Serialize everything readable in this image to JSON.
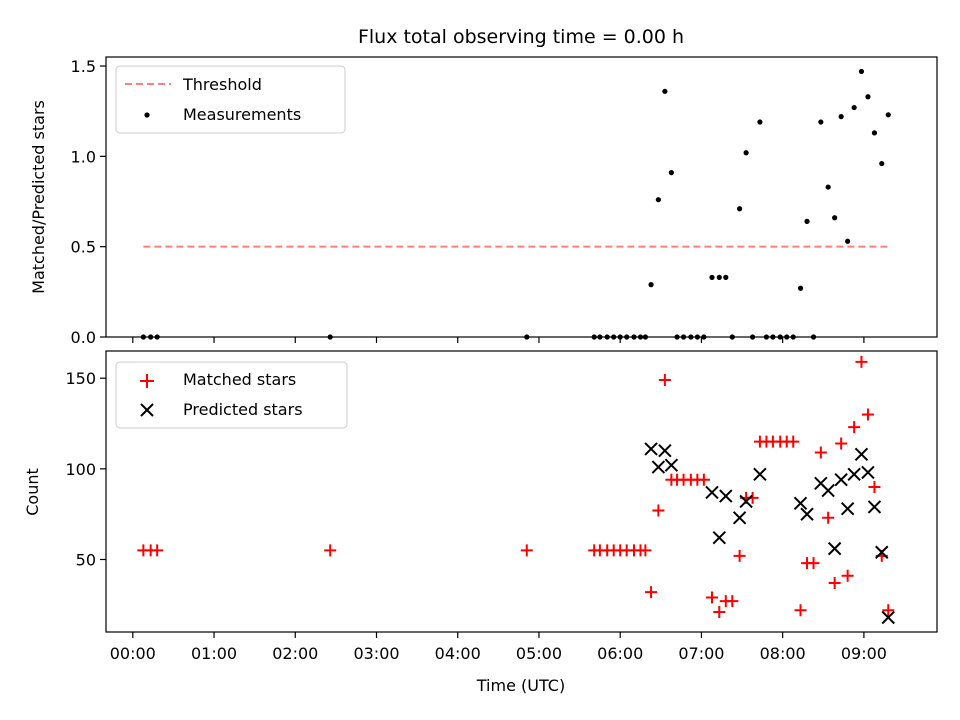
{
  "chart_data": [
    {
      "type": "scatter",
      "title": "Flux total observing time = 0.00 h",
      "xlabel": "",
      "ylabel": "Matched/Predicted stars",
      "xlim": [
        -0.33,
        9.9
      ],
      "ylim": [
        0.0,
        1.55
      ],
      "yticks": [
        0.0,
        0.5,
        1.0,
        1.5
      ],
      "ytick_labels": [
        "0.0",
        "0.5",
        "1.0",
        "1.5"
      ],
      "legend": {
        "position": "top-left",
        "entries": [
          "Threshold",
          "Measurements"
        ]
      },
      "threshold": {
        "name": "Threshold",
        "y": 0.5,
        "x_start": 0.13,
        "x_end": 9.32,
        "color": "#ff7f7f",
        "style": "dashed"
      },
      "series": [
        {
          "name": "Measurements",
          "marker": "dot",
          "color": "#000000",
          "points": [
            [
              0.13,
              0
            ],
            [
              0.22,
              0
            ],
            [
              0.3,
              0
            ],
            [
              2.43,
              0
            ],
            [
              4.85,
              0
            ],
            [
              5.68,
              0
            ],
            [
              5.75,
              0
            ],
            [
              5.84,
              0
            ],
            [
              5.92,
              0
            ],
            [
              6.0,
              0
            ],
            [
              6.08,
              0
            ],
            [
              6.17,
              0
            ],
            [
              6.25,
              0
            ],
            [
              6.31,
              0
            ],
            [
              6.38,
              0.29
            ],
            [
              6.47,
              0.76
            ],
            [
              6.55,
              1.36
            ],
            [
              6.63,
              0.91
            ],
            [
              6.7,
              0
            ],
            [
              6.78,
              0
            ],
            [
              6.87,
              0
            ],
            [
              6.95,
              0
            ],
            [
              7.03,
              0
            ],
            [
              7.13,
              0.33
            ],
            [
              7.22,
              0.33
            ],
            [
              7.3,
              0.33
            ],
            [
              7.38,
              0
            ],
            [
              7.47,
              0.71
            ],
            [
              7.55,
              1.02
            ],
            [
              7.63,
              0
            ],
            [
              7.72,
              1.19
            ],
            [
              7.8,
              0
            ],
            [
              7.88,
              0
            ],
            [
              7.97,
              0
            ],
            [
              8.05,
              0
            ],
            [
              8.13,
              0
            ],
            [
              8.22,
              0.27
            ],
            [
              8.3,
              0.64
            ],
            [
              8.38,
              0
            ],
            [
              8.47,
              1.19
            ],
            [
              8.56,
              0.83
            ],
            [
              8.64,
              0.66
            ],
            [
              8.72,
              1.22
            ],
            [
              8.8,
              0.53
            ],
            [
              8.88,
              1.27
            ],
            [
              8.97,
              1.47
            ],
            [
              9.05,
              1.33
            ],
            [
              9.13,
              1.13
            ],
            [
              9.22,
              0.96
            ],
            [
              9.3,
              1.23
            ]
          ]
        }
      ]
    },
    {
      "type": "scatter",
      "title": "",
      "xlabel": "Time (UTC)",
      "ylabel": "Count",
      "xlim": [
        -0.33,
        9.9
      ],
      "ylim": [
        10,
        165
      ],
      "yticks": [
        50,
        100,
        150
      ],
      "ytick_labels": [
        "50",
        "100",
        "150"
      ],
      "xticks": [
        0,
        1,
        2,
        3,
        4,
        5,
        6,
        7,
        8,
        9
      ],
      "xtick_labels": [
        "00:00",
        "01:00",
        "02:00",
        "03:00",
        "04:00",
        "05:00",
        "06:00",
        "07:00",
        "08:00",
        "09:00"
      ],
      "legend": {
        "position": "top-left",
        "entries": [
          "Matched stars",
          "Predicted stars"
        ]
      },
      "series": [
        {
          "name": "Matched stars",
          "marker": "plus",
          "color": "#ff0000",
          "points": [
            [
              0.13,
              55
            ],
            [
              0.22,
              55
            ],
            [
              0.3,
              55
            ],
            [
              2.43,
              55
            ],
            [
              4.85,
              55
            ],
            [
              5.68,
              55
            ],
            [
              5.75,
              55
            ],
            [
              5.84,
              55
            ],
            [
              5.92,
              55
            ],
            [
              6.0,
              55
            ],
            [
              6.08,
              55
            ],
            [
              6.17,
              55
            ],
            [
              6.25,
              55
            ],
            [
              6.31,
              55
            ],
            [
              6.38,
              32
            ],
            [
              6.47,
              77
            ],
            [
              6.55,
              149
            ],
            [
              6.63,
              94
            ],
            [
              6.7,
              94
            ],
            [
              6.78,
              94
            ],
            [
              6.87,
              94
            ],
            [
              6.95,
              94
            ],
            [
              7.03,
              94
            ],
            [
              7.13,
              29
            ],
            [
              7.22,
              21
            ],
            [
              7.3,
              27
            ],
            [
              7.38,
              27
            ],
            [
              7.47,
              52
            ],
            [
              7.55,
              84
            ],
            [
              7.63,
              84
            ],
            [
              7.72,
              115
            ],
            [
              7.8,
              115
            ],
            [
              7.88,
              115
            ],
            [
              7.97,
              115
            ],
            [
              8.05,
              115
            ],
            [
              8.13,
              115
            ],
            [
              8.22,
              22
            ],
            [
              8.3,
              48
            ],
            [
              8.38,
              48
            ],
            [
              8.47,
              109
            ],
            [
              8.56,
              73
            ],
            [
              8.64,
              37
            ],
            [
              8.72,
              114
            ],
            [
              8.8,
              41
            ],
            [
              8.88,
              123
            ],
            [
              8.97,
              159
            ],
            [
              9.05,
              130
            ],
            [
              9.13,
              90
            ],
            [
              9.22,
              52
            ],
            [
              9.3,
              22
            ]
          ]
        },
        {
          "name": "Predicted stars",
          "marker": "x",
          "color": "#000000",
          "points": [
            [
              6.38,
              111
            ],
            [
              6.47,
              101
            ],
            [
              6.55,
              110
            ],
            [
              6.63,
              102
            ],
            [
              7.13,
              87
            ],
            [
              7.22,
              62
            ],
            [
              7.3,
              85
            ],
            [
              7.47,
              73
            ],
            [
              7.55,
              82
            ],
            [
              7.72,
              97
            ],
            [
              8.22,
              81
            ],
            [
              8.3,
              75
            ],
            [
              8.47,
              92
            ],
            [
              8.56,
              88
            ],
            [
              8.64,
              56
            ],
            [
              8.72,
              94
            ],
            [
              8.8,
              78
            ],
            [
              8.88,
              97
            ],
            [
              8.97,
              108
            ],
            [
              9.05,
              98
            ],
            [
              9.13,
              79
            ],
            [
              9.22,
              54
            ],
            [
              9.3,
              18
            ]
          ]
        }
      ]
    }
  ]
}
